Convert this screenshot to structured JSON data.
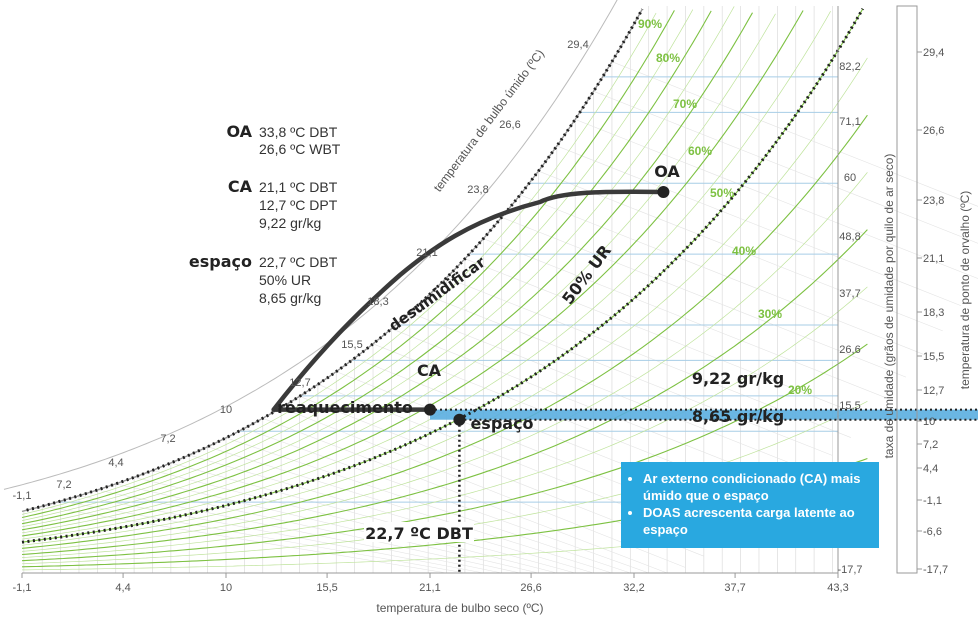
{
  "chart_data": {
    "type": "line",
    "subtype": "psychrometric chart",
    "xlabel": "temperatura de bulbo seco (ºC)",
    "ylabel_right": "taxa de umidade (grãos de umidade por quilo de ar seco)",
    "ylabel_dewpoint": "temperatura de ponto de orvalho (ºC)",
    "wetbulb_label": "temperatura de bulbo úmido (ºC)",
    "x_ticks": [
      "-1,1",
      "4,4",
      "10",
      "15,5",
      "21,1",
      "26,6",
      "32,2",
      "37,7",
      "43,3"
    ],
    "xlim": [
      -1.1,
      43.3
    ],
    "humidity_ticks": [
      "82,2",
      "71,1",
      "60",
      "48,8",
      "37,7",
      "26,6",
      "15,5",
      "4,4",
      "-6,6",
      "-17,7"
    ],
    "dewpoint_ticks": [
      "29,4",
      "26,6",
      "23,8",
      "21,1",
      "18,3",
      "15,5",
      "12,7",
      "10",
      "7,2",
      "4,4",
      "-1,1",
      "-6,6",
      "-17,7"
    ],
    "saturation_labels": [
      "29,4",
      "26,6",
      "23,8",
      "21,1",
      "18,3",
      "15,5",
      "12,7",
      "10",
      "7,2",
      "4,4",
      "-1,1"
    ],
    "rh_labels": [
      "90%",
      "80%",
      "70%",
      "60%",
      "50%",
      "40%",
      "30%",
      "20%"
    ],
    "rh_curve_label": "50% UR",
    "process_labels": {
      "dehumidify": "desumidificar",
      "reheat": "reaquecimento"
    },
    "points": [
      {
        "name": "OA",
        "dbt": 33.8,
        "wbt": 26.6
      },
      {
        "name": "CA",
        "dbt": 21.1,
        "dpt": 12.7,
        "w_grkg": 9.22
      },
      {
        "name": "espaço",
        "dbt": 22.7,
        "rh": 50,
        "w_grkg": 8.65
      }
    ],
    "humidity_annotations": [
      "9,22 gr/kg",
      "8,65 gr/kg"
    ],
    "dbt_annotation": "22,7 ºC DBT",
    "legend": [
      {
        "key": "OA",
        "lines": [
          "33,8 ºC DBT",
          "26,6 ºC WBT"
        ]
      },
      {
        "key": "CA",
        "lines": [
          "21,1 ºC DBT",
          "12,7 ºC DPT",
          "9,22 gr/kg"
        ]
      },
      {
        "key": "espaço",
        "lines": [
          "22,7 ºC DBT",
          "50% UR",
          "8,65 gr/kg"
        ]
      }
    ],
    "callout": [
      "Ar externo condicionado (CA) mais úmido que o espaço",
      "DOAS acrescenta carga latente ao espaço"
    ],
    "colors": {
      "rh_curves": "#7dc142",
      "grid": "#d0d0d0",
      "humidity_lines": "#a7cde6",
      "latent_band": "#5aaee0",
      "process": "#3a3a3a",
      "callout": "#29a8e0"
    }
  }
}
